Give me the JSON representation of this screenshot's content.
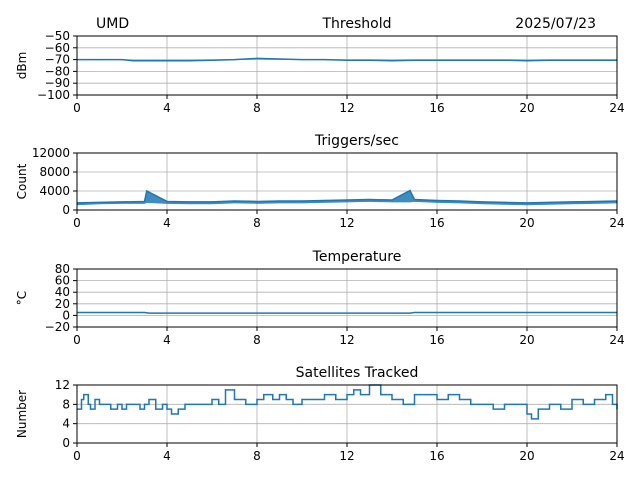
{
  "header": {
    "left": "UMD",
    "right": "2025/07/23"
  },
  "colors": {
    "series": "#1f77b4",
    "grid": "#b0b0b0",
    "axis": "#000000"
  },
  "chart_data": [
    {
      "type": "line",
      "title": "Threshold",
      "ylabel": "dBm",
      "xlim": [
        0,
        24
      ],
      "ylim": [
        -100,
        -50
      ],
      "x_ticks": [
        0,
        4,
        8,
        12,
        16,
        20,
        24
      ],
      "y_ticks": [
        -100,
        -90,
        -80,
        -70,
        -60,
        -50
      ],
      "grid": true,
      "series": [
        {
          "x": [
            0,
            1,
            2,
            2.5,
            3,
            4,
            5,
            6,
            7,
            7.5,
            8,
            9,
            10,
            11,
            12,
            13,
            14,
            15,
            16,
            17,
            18,
            19,
            20,
            21,
            22,
            23,
            24
          ],
          "values": [
            -70,
            -70,
            -70,
            -71,
            -71,
            -71,
            -71,
            -70.5,
            -70,
            -69.5,
            -69,
            -69.5,
            -70,
            -70,
            -70.5,
            -70.5,
            -71,
            -70.5,
            -70.5,
            -70.5,
            -70.5,
            -70.5,
            -71,
            -70.5,
            -70.5,
            -70.5,
            -70.5
          ]
        }
      ]
    },
    {
      "type": "line",
      "title": "Triggers/sec",
      "ylabel": "Count",
      "xlim": [
        0,
        24
      ],
      "ylim": [
        0,
        12000
      ],
      "x_ticks": [
        0,
        4,
        8,
        12,
        16,
        20,
        24
      ],
      "y_ticks": [
        0,
        4000,
        8000,
        12000
      ],
      "grid": true,
      "series": [
        {
          "x": [
            0,
            1,
            2,
            3,
            3.1,
            4,
            5,
            6,
            7,
            8,
            9,
            10,
            11,
            12,
            13,
            14,
            14.8,
            15,
            16,
            17,
            18,
            19,
            20,
            21,
            22,
            23,
            24
          ],
          "values": [
            1500,
            1600,
            1700,
            1800,
            4000,
            1800,
            1700,
            1700,
            1900,
            1800,
            1900,
            1900,
            2000,
            2100,
            2200,
            2100,
            4100,
            2200,
            2000,
            1900,
            1700,
            1600,
            1500,
            1600,
            1700,
            1800,
            1900
          ],
          "band": [
            1000,
            1200,
            1300,
            1300,
            1500,
            1300,
            1200,
            1200,
            1400,
            1300,
            1400,
            1400,
            1500,
            1600,
            1700,
            1600,
            1600,
            1700,
            1500,
            1400,
            1200,
            1100,
            1000,
            1100,
            1200,
            1300,
            1400
          ]
        }
      ]
    },
    {
      "type": "line",
      "title": "Temperature",
      "ylabel": "°C",
      "xlim": [
        0,
        24
      ],
      "ylim": [
        -20,
        80
      ],
      "x_ticks": [
        0,
        4,
        8,
        12,
        16,
        20,
        24
      ],
      "y_ticks": [
        -20,
        0,
        20,
        40,
        60,
        80
      ],
      "grid": true,
      "series": [
        {
          "x": [
            0,
            3,
            3.2,
            14.8,
            15,
            24
          ],
          "values": [
            5,
            5,
            4,
            4,
            5,
            5
          ]
        }
      ]
    },
    {
      "type": "line",
      "title": "Satellites Tracked",
      "ylabel": "Number",
      "xlim": [
        0,
        24
      ],
      "ylim": [
        0,
        12
      ],
      "x_ticks": [
        0,
        4,
        8,
        12,
        16,
        20,
        24
      ],
      "y_ticks": [
        0,
        4,
        8,
        12
      ],
      "grid": true,
      "series": [
        {
          "x": [
            0,
            0.2,
            0.3,
            0.5,
            0.6,
            0.8,
            1,
            1.2,
            1.5,
            1.8,
            2,
            2.2,
            2.5,
            2.8,
            3,
            3.2,
            3.5,
            3.8,
            4,
            4.2,
            4.5,
            4.8,
            5,
            5.5,
            6,
            6.3,
            6.6,
            7,
            7.5,
            8,
            8.3,
            8.7,
            9,
            9.3,
            9.6,
            10,
            10.5,
            11,
            11.5,
            12,
            12.3,
            12.6,
            13,
            13.5,
            14,
            14.5,
            15,
            15.5,
            16,
            16.5,
            17,
            17.5,
            18,
            18.5,
            19,
            19.5,
            20,
            20.2,
            20.5,
            21,
            21.5,
            22,
            22.5,
            23,
            23.5,
            23.8,
            24
          ],
          "values": [
            7,
            9,
            10,
            8,
            7,
            9,
            8,
            8,
            7,
            8,
            7,
            8,
            8,
            7,
            8,
            9,
            7,
            8,
            7,
            6,
            7,
            8,
            8,
            8,
            9,
            8,
            11,
            9,
            8,
            9,
            10,
            9,
            10,
            9,
            8,
            9,
            9,
            10,
            9,
            10,
            11,
            10,
            12,
            10,
            9,
            8,
            10,
            10,
            9,
            10,
            9,
            8,
            8,
            7,
            8,
            8,
            6,
            5,
            7,
            8,
            7,
            9,
            8,
            9,
            10,
            8,
            7
          ]
        }
      ]
    }
  ]
}
